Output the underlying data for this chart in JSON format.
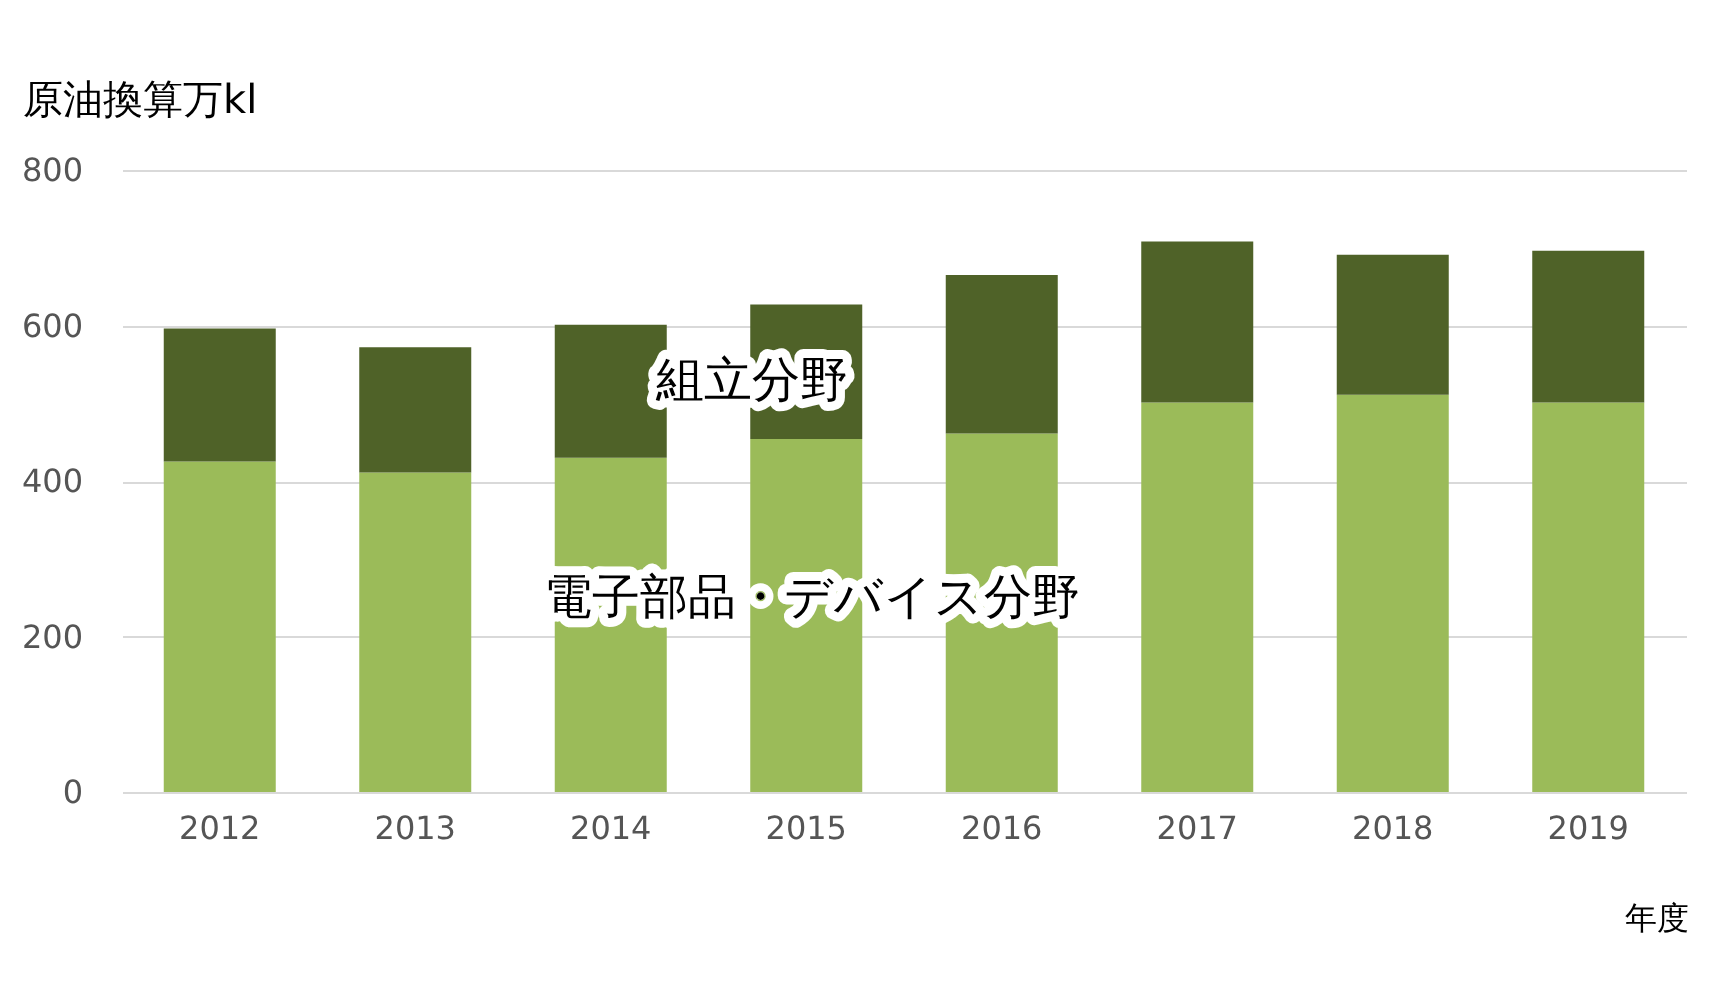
{
  "chart_data": {
    "type": "bar",
    "stacked": true,
    "xlabel": "年度",
    "ylabel": "原油換算万kl",
    "categories": [
      "2012",
      "2013",
      "2014",
      "2015",
      "2016",
      "2017",
      "2018",
      "2019"
    ],
    "series": [
      {
        "name": "電子部品・デバイス分野",
        "color": "#9bbb59",
        "values": [
          425,
          411,
          430,
          454,
          461,
          501,
          511,
          501
        ]
      },
      {
        "name": "組立分野",
        "color": "#4f6228",
        "values": [
          171,
          161,
          171,
          173,
          204,
          207,
          180,
          195
        ]
      }
    ],
    "ylim": [
      0,
      800
    ],
    "yticks": [
      0,
      200,
      400,
      600,
      800
    ],
    "grid": "y",
    "legend": false
  }
}
